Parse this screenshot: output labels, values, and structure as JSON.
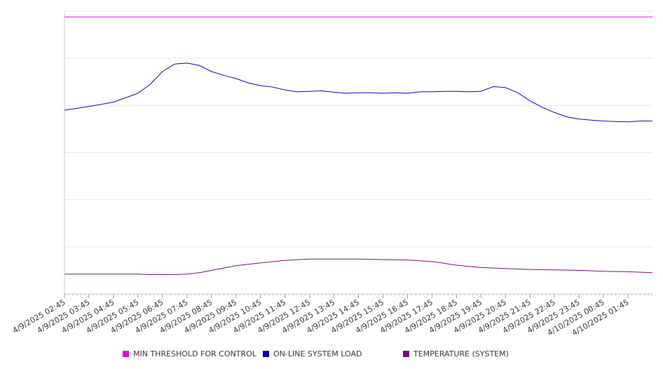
{
  "chart_data": {
    "type": "line",
    "title": "",
    "xlabel": "",
    "ylabel": "",
    "grid": true,
    "legend_placement": "bottom",
    "x_tick_labels": [
      "4/9/2025 02:45",
      "4/9/2025 03:45",
      "4/9/2025 04:45",
      "4/9/2025 05:45",
      "4/9/2025 06:45",
      "4/9/2025 07:45",
      "4/9/2025 08:45",
      "4/9/2025 09:45",
      "4/9/2025 10:45",
      "4/9/2025 11:45",
      "4/9/2025 12:45",
      "4/9/2025 13:45",
      "4/9/2025 14:45",
      "4/9/2025 15:45",
      "4/9/2025 16:45",
      "4/9/2025 17:45",
      "4/9/2025 18:45",
      "4/9/2025 19:45",
      "4/9/2025 20:45",
      "4/9/2025 21:45",
      "4/9/2025 22:45",
      "4/9/2025 23:45",
      "4/10/2025 00:45",
      "4/10/2025 01:45"
    ],
    "x_range": [
      "4/9/2025 02:45",
      "4/10/2025 02:45"
    ],
    "y_range": [
      0,
      6
    ],
    "series": [
      {
        "name": "MIN THRESHOLD FOR CONTROL",
        "color": "#e600e6",
        "x": [
          0,
          24
        ],
        "values": [
          5.88,
          5.88
        ]
      },
      {
        "name": "ON-LINE SYSTEM LOAD",
        "color": "#0000cc",
        "x": [
          0,
          1,
          2,
          3,
          3.5,
          4,
          4.5,
          5,
          5.5,
          6,
          6.5,
          7,
          7.5,
          8,
          8.5,
          9,
          9.5,
          10,
          10.5,
          11,
          11.5,
          12,
          12.5,
          13,
          13.5,
          14,
          14.5,
          15,
          15.5,
          16,
          16.5,
          17,
          17.5,
          18,
          18.5,
          19,
          19.5,
          20,
          20.5,
          21,
          21.5,
          22,
          22.5,
          23,
          23.5,
          24
        ],
        "values": [
          3.9,
          3.98,
          4.07,
          4.26,
          4.45,
          4.72,
          4.88,
          4.9,
          4.85,
          4.72,
          4.64,
          4.57,
          4.48,
          4.42,
          4.39,
          4.33,
          4.29,
          4.3,
          4.31,
          4.28,
          4.26,
          4.27,
          4.27,
          4.26,
          4.27,
          4.26,
          4.29,
          4.29,
          4.3,
          4.3,
          4.29,
          4.3,
          4.4,
          4.38,
          4.27,
          4.1,
          3.96,
          3.85,
          3.76,
          3.71,
          3.69,
          3.67,
          3.66,
          3.65,
          3.67,
          3.67
        ]
      },
      {
        "name": "TEMPERATURE (SYSTEM)",
        "color": "#800080",
        "x": [
          0,
          1,
          2,
          3,
          3.5,
          4,
          4.5,
          5,
          5.5,
          6,
          6.5,
          7,
          7.5,
          8,
          9,
          10,
          11,
          12,
          13,
          14,
          15,
          16,
          17,
          18,
          19,
          20,
          21,
          22,
          23,
          24
        ],
        "values": [
          0.42,
          0.42,
          0.42,
          0.42,
          0.41,
          0.41,
          0.41,
          0.42,
          0.45,
          0.5,
          0.55,
          0.6,
          0.63,
          0.66,
          0.71,
          0.74,
          0.74,
          0.74,
          0.73,
          0.72,
          0.69,
          0.61,
          0.56,
          0.54,
          0.52,
          0.51,
          0.5,
          0.48,
          0.47,
          0.45
        ]
      }
    ]
  },
  "legend": {
    "items": [
      {
        "label": "MIN THRESHOLD FOR CONTROL",
        "color": "#e600e6"
      },
      {
        "label": "ON-LINE SYSTEM LOAD",
        "color": "#0000cc"
      },
      {
        "label": "TEMPERATURE (SYSTEM)",
        "color": "#800080"
      }
    ]
  }
}
